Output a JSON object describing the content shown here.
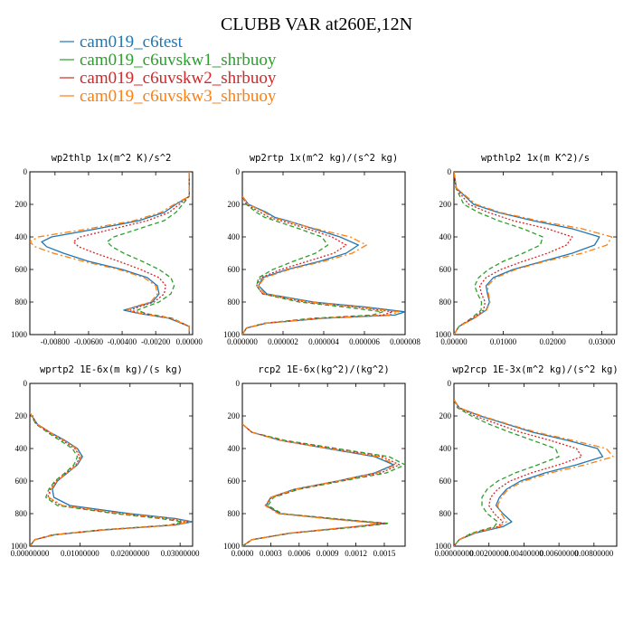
{
  "figure": {
    "title": "CLUBB VAR at260E,12N"
  },
  "legend": [
    {
      "label": "cam019_c6test",
      "color": "#1f77b4",
      "dash": "solid"
    },
    {
      "label": "cam019_c6uvskw1_shrbuoy",
      "color": "#2ca02c",
      "dash": "dashed"
    },
    {
      "label": "cam019_c6uvskw2_shrbuoy",
      "color": "#d62728",
      "dash": "dotted"
    },
    {
      "label": "cam019_c6uvskw3_shrbuoy",
      "color": "#ff7f0e",
      "dash": "dashdot"
    }
  ],
  "chart_data": [
    {
      "type": "line",
      "title": "wp2thlp  1x(m^2 K)/s^2",
      "xlim": [
        -0.0095,
        0.0002
      ],
      "ylim": [
        1000,
        0
      ],
      "xticks": [
        -0.008,
        -0.006,
        -0.004,
        -0.002,
        0.0
      ],
      "xtick_labels": [
        "-0.00800",
        "-0.00600",
        "-0.00400",
        "-0.00200",
        "0.00000"
      ],
      "yticks": [
        0,
        200,
        400,
        600,
        800,
        1000
      ],
      "ytick_labels": [
        "0",
        "200",
        "400",
        "600",
        "800",
        "1000"
      ],
      "y": [
        0,
        150,
        200,
        250,
        300,
        350,
        400,
        430,
        460,
        500,
        550,
        600,
        650,
        700,
        750,
        800,
        830,
        850,
        870,
        900,
        950,
        1000
      ],
      "series": [
        {
          "name": "cam019_c6test",
          "x": [
            0.0,
            0.0,
            -0.0008,
            -0.0015,
            -0.003,
            -0.0055,
            -0.0082,
            -0.0088,
            -0.0085,
            -0.0075,
            -0.006,
            -0.004,
            -0.0025,
            -0.0019,
            -0.0018,
            -0.0022,
            -0.0032,
            -0.0039,
            -0.003,
            -0.0012,
            0.0,
            0.0
          ]
        },
        {
          "name": "cam019_c6uvskw1_shrbuoy",
          "x": [
            0.0,
            0.0,
            -0.0004,
            -0.0008,
            -0.0015,
            -0.003,
            -0.0045,
            -0.0049,
            -0.0046,
            -0.0039,
            -0.0028,
            -0.0018,
            -0.0011,
            -0.0009,
            -0.0011,
            -0.0018,
            -0.0026,
            -0.0031,
            -0.0026,
            -0.001,
            0.0,
            0.0
          ]
        },
        {
          "name": "cam019_c6uvskw2_shrbuoy",
          "x": [
            0.0,
            0.0,
            -0.0006,
            -0.0012,
            -0.0025,
            -0.0045,
            -0.0065,
            -0.0069,
            -0.0066,
            -0.0056,
            -0.0042,
            -0.0029,
            -0.0018,
            -0.0014,
            -0.0015,
            -0.0021,
            -0.003,
            -0.0035,
            -0.0028,
            -0.0011,
            0.0,
            0.0
          ]
        },
        {
          "name": "cam019_c6uvskw3_shrbuoy",
          "x": [
            0.0,
            0.0,
            -0.0009,
            -0.0017,
            -0.0033,
            -0.006,
            -0.009,
            -0.0095,
            -0.0092,
            -0.0081,
            -0.0063,
            -0.0042,
            -0.0027,
            -0.002,
            -0.0019,
            -0.0023,
            -0.0033,
            -0.0037,
            -0.0029,
            -0.0011,
            0.0,
            0.0
          ]
        }
      ]
    },
    {
      "type": "line",
      "title": "wp2rtp  1x(m^2 kg)/(s^2 kg)",
      "xlim": [
        0.0,
        8e-06
      ],
      "ylim": [
        1000,
        0
      ],
      "xticks": [
        0.0,
        2e-06,
        4e-06,
        6e-06,
        8e-06
      ],
      "xtick_labels": [
        "0.000000",
        "0.000002",
        "0.000004",
        "0.000006",
        "0.000008"
      ],
      "yticks": [
        0,
        200,
        400,
        600,
        800,
        1000
      ],
      "ytick_labels": [
        "0",
        "200",
        "400",
        "600",
        "800",
        "1000"
      ],
      "y": [
        150,
        200,
        250,
        280,
        300,
        350,
        400,
        450,
        500,
        550,
        600,
        650,
        700,
        750,
        800,
        830,
        860,
        880,
        900,
        930,
        960,
        1000
      ],
      "series": [
        {
          "name": "cam019_c6test",
          "x": [
            0.0,
            3e-07,
            1.2e-06,
            1.6e-06,
            2.2e-06,
            3.5e-06,
            4.8e-06,
            5.7e-06,
            5.1e-06,
            3.8e-06,
            2.2e-06,
            1e-06,
            8e-07,
            1.2e-06,
            3.5e-06,
            6e-06,
            8e-06,
            7.5e-06,
            4e-06,
            1.2e-06,
            2e-07,
            0.0
          ]
        },
        {
          "name": "cam019_c6uvskw1_shrbuoy",
          "x": [
            0.0,
            2e-07,
            7e-07,
            1.1e-06,
            1.6e-06,
            2.8e-06,
            3.9e-06,
            4.2e-06,
            3.6e-06,
            2.5e-06,
            1.5e-06,
            8e-07,
            7e-07,
            1e-06,
            2.8e-06,
            5e-06,
            6.9e-06,
            6.4e-06,
            3.4e-06,
            1.1e-06,
            2e-07,
            0.0
          ]
        },
        {
          "name": "cam019_c6uvskw2_shrbuoy",
          "x": [
            0.0,
            2e-07,
            9e-07,
            1.3e-06,
            1.9e-06,
            3.2e-06,
            4.4e-06,
            5.1e-06,
            4.5e-06,
            3.2e-06,
            1.9e-06,
            9e-07,
            7e-07,
            1e-06,
            3.1e-06,
            5.5e-06,
            7.4e-06,
            6.9e-06,
            3.7e-06,
            1.1e-06,
            2e-07,
            0.0
          ]
        },
        {
          "name": "cam019_c6uvskw3_shrbuoy",
          "x": [
            0.0,
            3e-07,
            1.1e-06,
            1.5e-06,
            2.1e-06,
            3.6e-06,
            5.3e-06,
            6.1e-06,
            5.4e-06,
            4e-06,
            2.3e-06,
            1.1e-06,
            8e-07,
            1.1e-06,
            3.3e-06,
            5.7e-06,
            7.7e-06,
            7.2e-06,
            3.8e-06,
            1.2e-06,
            2e-07,
            0.0
          ]
        }
      ]
    },
    {
      "type": "line",
      "title": "wpthlp2  1x(m K^2)/s",
      "xlim": [
        0.0,
        0.033
      ],
      "ylim": [
        1000,
        0
      ],
      "xticks": [
        0.0,
        0.01,
        0.02,
        0.03
      ],
      "xtick_labels": [
        "0.00000",
        "0.01000",
        "0.02000",
        "0.03000"
      ],
      "yticks": [
        0,
        200,
        400,
        600,
        800,
        1000
      ],
      "ytick_labels": [
        "0",
        "200",
        "400",
        "600",
        "800",
        "1000"
      ],
      "y": [
        0,
        100,
        200,
        250,
        300,
        350,
        400,
        450,
        500,
        550,
        600,
        650,
        700,
        750,
        800,
        850,
        900,
        950,
        1000
      ],
      "series": [
        {
          "name": "cam019_c6test",
          "x": [
            0.0,
            0.0005,
            0.004,
            0.009,
            0.016,
            0.024,
            0.0295,
            0.0285,
            0.024,
            0.018,
            0.012,
            0.008,
            0.0065,
            0.0068,
            0.0072,
            0.0065,
            0.004,
            0.001,
            0.0
          ]
        },
        {
          "name": "cam019_c6uvskw1_shrbuoy",
          "x": [
            0.0,
            0.0004,
            0.002,
            0.005,
            0.009,
            0.014,
            0.018,
            0.0175,
            0.014,
            0.01,
            0.007,
            0.005,
            0.0042,
            0.0048,
            0.0056,
            0.0055,
            0.0035,
            0.001,
            0.0
          ]
        },
        {
          "name": "cam019_c6uvskw2_shrbuoy",
          "x": [
            0.0,
            0.0004,
            0.003,
            0.007,
            0.012,
            0.019,
            0.024,
            0.0228,
            0.019,
            0.014,
            0.0095,
            0.0065,
            0.0052,
            0.0056,
            0.0063,
            0.006,
            0.0038,
            0.001,
            0.0
          ]
        },
        {
          "name": "cam019_c6uvskw3_shrbuoy",
          "x": [
            0.0,
            0.0005,
            0.0045,
            0.0095,
            0.017,
            0.026,
            0.032,
            0.031,
            0.026,
            0.0185,
            0.0125,
            0.0085,
            0.0068,
            0.007,
            0.0073,
            0.0066,
            0.0041,
            0.001,
            0.0
          ]
        }
      ]
    },
    {
      "type": "line",
      "title": "wprtp2  1E-6x(m kg)/(s kg)",
      "xlim": [
        0.0,
        0.0325
      ],
      "ylim": [
        1000,
        0
      ],
      "xticks": [
        0.0,
        0.01,
        0.02,
        0.03
      ],
      "xtick_labels": [
        "0.00000000",
        "0.01000000",
        "0.02000000",
        "0.03000000"
      ],
      "yticks": [
        0,
        200,
        400,
        600,
        800,
        1000
      ],
      "ytick_labels": [
        "0",
        "200",
        "400",
        "600",
        "800",
        "1000"
      ],
      "y": [
        180,
        250,
        300,
        350,
        400,
        450,
        500,
        550,
        600,
        650,
        700,
        750,
        800,
        830,
        850,
        870,
        900,
        930,
        960,
        1000
      ],
      "series": [
        {
          "name": "cam019_c6test",
          "x": [
            0.0,
            0.0015,
            0.004,
            0.007,
            0.0095,
            0.0105,
            0.0095,
            0.0075,
            0.0055,
            0.0045,
            0.0048,
            0.008,
            0.02,
            0.029,
            0.0325,
            0.029,
            0.015,
            0.005,
            0.001,
            0.0
          ]
        },
        {
          "name": "cam019_c6uvskw1_shrbuoy",
          "x": [
            0.0,
            0.0012,
            0.0035,
            0.006,
            0.0085,
            0.0095,
            0.0088,
            0.007,
            0.005,
            0.0038,
            0.0032,
            0.0055,
            0.017,
            0.026,
            0.0305,
            0.028,
            0.014,
            0.0045,
            0.001,
            0.0
          ]
        },
        {
          "name": "cam019_c6uvskw2_shrbuoy",
          "x": [
            0.0,
            0.0013,
            0.0038,
            0.0065,
            0.009,
            0.01,
            0.0092,
            0.0072,
            0.0052,
            0.0041,
            0.0036,
            0.0062,
            0.018,
            0.0275,
            0.0315,
            0.0285,
            0.0145,
            0.0048,
            0.001,
            0.0
          ]
        },
        {
          "name": "cam019_c6uvskw3_shrbuoy",
          "x": [
            0.0,
            0.0014,
            0.004,
            0.0068,
            0.0093,
            0.0103,
            0.0094,
            0.0074,
            0.0054,
            0.0043,
            0.0038,
            0.0065,
            0.0185,
            0.028,
            0.032,
            0.029,
            0.0148,
            0.0049,
            0.001,
            0.0
          ]
        }
      ]
    },
    {
      "type": "line",
      "title": "rcp2  1E-6x(kg^2)/(kg^2)",
      "xlim": [
        0.0,
        0.00172
      ],
      "ylim": [
        1000,
        0
      ],
      "xticks": [
        0.0,
        0.0003,
        0.0006,
        0.0009,
        0.0012,
        0.0015
      ],
      "xtick_labels": [
        "0.0000",
        "0.0003",
        "0.0006",
        "0.0009",
        "0.0012",
        "0.0015"
      ],
      "yticks": [
        0,
        200,
        400,
        600,
        800,
        1000
      ],
      "ytick_labels": [
        "0",
        "200",
        "400",
        "600",
        "800",
        "1000"
      ],
      "y": [
        250,
        300,
        350,
        400,
        450,
        500,
        550,
        600,
        650,
        700,
        750,
        800,
        840,
        860,
        880,
        920,
        960,
        1000
      ],
      "series": [
        {
          "name": "cam019_c6test",
          "x": [
            0.0,
            0.0001,
            0.0004,
            0.0009,
            0.0014,
            0.0016,
            0.0014,
            0.001,
            0.00055,
            0.0003,
            0.00025,
            0.0004,
            0.0011,
            0.0015,
            0.0012,
            0.0005,
            0.0001,
            0.0
          ]
        },
        {
          "name": "cam019_c6uvskw1_shrbuoy",
          "x": [
            0.0,
            0.0001,
            0.00045,
            0.001,
            0.00155,
            0.00172,
            0.00152,
            0.00105,
            0.0006,
            0.00033,
            0.00027,
            0.00042,
            0.00115,
            0.00155,
            0.00125,
            0.00052,
            0.0001,
            0.0
          ]
        },
        {
          "name": "cam019_c6uvskw2_shrbuoy",
          "x": [
            0.0,
            0.0001,
            0.00042,
            0.00095,
            0.00148,
            0.00166,
            0.00146,
            0.00102,
            0.00058,
            0.00031,
            0.00025,
            0.0004,
            0.0011,
            0.0015,
            0.0012,
            0.0005,
            0.0001,
            0.0
          ]
        },
        {
          "name": "cam019_c6uvskw3_shrbuoy",
          "x": [
            0.0,
            0.0001,
            0.0004,
            0.00092,
            0.00144,
            0.00162,
            0.00142,
            0.001,
            0.00056,
            0.0003,
            0.00024,
            0.00038,
            0.00105,
            0.00145,
            0.00117,
            0.00049,
            0.0001,
            0.0
          ]
        }
      ]
    },
    {
      "type": "line",
      "title": "wp2rcp  1E-3x(m^2 kg)/(s^2 kg)",
      "xlim": [
        0.0,
        0.0093
      ],
      "ylim": [
        1000,
        0
      ],
      "xticks": [
        0.0,
        0.002,
        0.004,
        0.006,
        0.008
      ],
      "xtick_labels": [
        "0.00000000",
        "0.00200000",
        "0.00400000",
        "0.00600000",
        "0.00800000"
      ],
      "yticks": [
        0,
        200,
        400,
        600,
        800,
        1000
      ],
      "ytick_labels": [
        "0",
        "200",
        "400",
        "600",
        "800",
        "1000"
      ],
      "y": [
        100,
        150,
        200,
        250,
        300,
        350,
        400,
        450,
        500,
        550,
        600,
        650,
        700,
        750,
        800,
        850,
        880,
        920,
        960,
        1000
      ],
      "series": [
        {
          "name": "cam019_c6test",
          "x": [
            0.0,
            0.0003,
            0.0015,
            0.003,
            0.0045,
            0.0065,
            0.0082,
            0.0085,
            0.007,
            0.0052,
            0.0038,
            0.003,
            0.0026,
            0.0024,
            0.0028,
            0.0033,
            0.0028,
            0.0012,
            0.0003,
            0.0
          ]
        },
        {
          "name": "cam019_c6uvskw1_shrbuoy",
          "x": [
            0.0,
            0.0002,
            0.001,
            0.002,
            0.0032,
            0.0045,
            0.0058,
            0.006,
            0.0048,
            0.0035,
            0.0025,
            0.0019,
            0.0016,
            0.0016,
            0.0019,
            0.0025,
            0.0023,
            0.001,
            0.0003,
            0.0
          ]
        },
        {
          "name": "cam019_c6uvskw2_shrbuoy",
          "x": [
            0.0,
            0.0003,
            0.0012,
            0.0025,
            0.0038,
            0.0055,
            0.007,
            0.0073,
            0.006,
            0.0044,
            0.0032,
            0.0025,
            0.0021,
            0.002,
            0.0023,
            0.0028,
            0.0025,
            0.0011,
            0.0003,
            0.0
          ]
        },
        {
          "name": "cam019_c6uvskw3_shrbuoy",
          "x": [
            0.0,
            0.0003,
            0.0016,
            0.0031,
            0.0047,
            0.0068,
            0.0087,
            0.0091,
            0.0075,
            0.0055,
            0.004,
            0.0031,
            0.0027,
            0.0025,
            0.0027,
            0.003,
            0.0026,
            0.0011,
            0.0003,
            0.0
          ]
        }
      ]
    }
  ]
}
